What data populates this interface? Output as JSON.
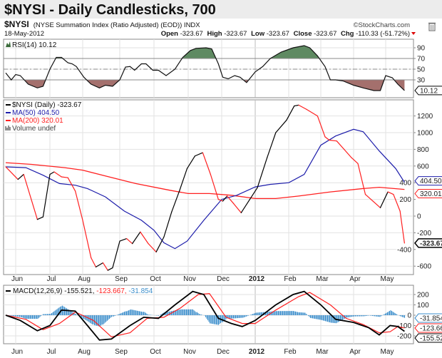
{
  "header": {
    "title": "$NYSI - Daily Candlesticks, 700",
    "symbol": "$NYSI",
    "description": "(NYSE Summation Index (Ratio Adjusted) (EOD)) INDX",
    "watermark": "©StockCharts.com",
    "date": "18-May-2012",
    "open_label": "Open",
    "open": "-323.67",
    "high_label": "High",
    "high": "-323.67",
    "low_label": "Low",
    "low": "-323.67",
    "close_label": "Close",
    "close": "-323.67",
    "chg_label": "Chg",
    "chg": "-110.33 (-51.72%)",
    "chg_direction": "down",
    "trash_icon": "trash-icon"
  },
  "colors": {
    "up": "#000000",
    "down": "#ff2020",
    "ma50": "#1c1caa",
    "ma200": "#ff2020",
    "macd_hist": "#3d8fcc",
    "signal": "#ff2020",
    "rsi_overbought_fill": "#5f8a62",
    "rsi_oversold_fill": "#a4706d"
  },
  "chart_data": [
    {
      "type": "line",
      "panel": "RSI",
      "legend": "RSI(14) 10.12",
      "last_tag": "10.12",
      "ylim": [
        0,
        100
      ],
      "yticks": [
        "90",
        "70",
        "50",
        "30"
      ],
      "reference_lines": [
        70,
        50,
        30
      ],
      "grid": true,
      "series": [
        {
          "name": "RSI(14)",
          "points": [
            [
              "2011-05-23",
              43
            ],
            [
              "2011-05-28",
              30
            ],
            [
              "2011-06-01",
              40
            ],
            [
              "2011-06-05",
              38
            ],
            [
              "2011-06-12",
              22
            ],
            [
              "2011-06-20",
              15
            ],
            [
              "2011-06-25",
              18
            ],
            [
              "2011-07-01",
              50
            ],
            [
              "2011-07-07",
              72
            ],
            [
              "2011-07-12",
              72
            ],
            [
              "2011-07-18",
              62
            ],
            [
              "2011-07-22",
              60
            ],
            [
              "2011-07-26",
              55
            ],
            [
              "2011-08-02",
              35
            ],
            [
              "2011-08-08",
              22
            ],
            [
              "2011-08-15",
              15
            ],
            [
              "2011-08-20",
              20
            ],
            [
              "2011-08-26",
              18
            ],
            [
              "2011-09-01",
              30
            ],
            [
              "2011-09-06",
              54
            ],
            [
              "2011-09-10",
              55
            ],
            [
              "2011-09-14",
              48
            ],
            [
              "2011-09-20",
              60
            ],
            [
              "2011-09-24",
              60
            ],
            [
              "2011-09-30",
              48
            ],
            [
              "2011-10-05",
              48
            ],
            [
              "2011-10-12",
              38
            ],
            [
              "2011-10-20",
              50
            ],
            [
              "2011-10-27",
              72
            ],
            [
              "2011-11-03",
              85
            ],
            [
              "2011-11-08",
              89
            ],
            [
              "2011-11-17",
              90
            ],
            [
              "2011-11-22",
              88
            ],
            [
              "2011-11-28",
              60
            ],
            [
              "2011-12-02",
              35
            ],
            [
              "2011-12-07",
              32
            ],
            [
              "2011-12-13",
              38
            ],
            [
              "2011-12-18",
              35
            ],
            [
              "2011-12-24",
              25
            ],
            [
              "2012-01-01",
              45
            ],
            [
              "2012-01-08",
              55
            ],
            [
              "2012-01-15",
              70
            ],
            [
              "2012-01-25",
              82
            ],
            [
              "2012-02-05",
              90
            ],
            [
              "2012-02-15",
              94
            ],
            [
              "2012-02-20",
              90
            ],
            [
              "2012-02-27",
              75
            ],
            [
              "2012-03-05",
              55
            ],
            [
              "2012-03-10",
              30
            ],
            [
              "2012-03-15",
              30
            ],
            [
              "2012-03-22",
              28
            ],
            [
              "2012-04-01",
              20
            ],
            [
              "2012-04-10",
              15
            ],
            [
              "2012-04-20",
              10
            ],
            [
              "2012-04-26",
              10
            ],
            [
              "2012-05-01",
              38
            ],
            [
              "2012-05-07",
              34
            ],
            [
              "2012-05-12",
              22
            ],
            [
              "2012-05-18",
              10.12
            ]
          ]
        }
      ]
    },
    {
      "type": "line",
      "panel": "price",
      "ylim": [
        -700,
        1400
      ],
      "yticks": [
        "1200",
        "1000",
        "800",
        "600",
        "400",
        "200",
        "0",
        "-200",
        "-400",
        "-600"
      ],
      "xticks": [
        "Jun",
        "Jul",
        "Aug",
        "Sep",
        "Oct",
        "Nov",
        "Dec",
        "2012",
        "Feb",
        "Mar",
        "Apr",
        "May"
      ],
      "grid": true,
      "legend": [
        "$NYSI (Daily) -323.67",
        "MA(50) 404.50",
        "MA(200) 320.01",
        "Volume undef"
      ],
      "series": [
        {
          "name": "$NYSI (Daily)",
          "last_tag": "-323.67",
          "points": [
            [
              "2011-05-23",
              590
            ],
            [
              "2011-06-03",
              440
            ],
            [
              "2011-06-08",
              500
            ],
            [
              "2011-06-20",
              -40
            ],
            [
              "2011-06-25",
              -10
            ],
            [
              "2011-07-01",
              500
            ],
            [
              "2011-07-05",
              530
            ],
            [
              "2011-07-12",
              470
            ],
            [
              "2011-07-18",
              460
            ],
            [
              "2011-07-25",
              300
            ],
            [
              "2011-08-01",
              -50
            ],
            [
              "2011-08-08",
              -500
            ],
            [
              "2011-08-12",
              -610
            ],
            [
              "2011-08-18",
              -560
            ],
            [
              "2011-08-22",
              -650
            ],
            [
              "2011-08-26",
              -620
            ],
            [
              "2011-09-01",
              -300
            ],
            [
              "2011-09-07",
              -270
            ],
            [
              "2011-09-12",
              -330
            ],
            [
              "2011-09-19",
              -190
            ],
            [
              "2011-09-26",
              -330
            ],
            [
              "2011-10-03",
              -430
            ],
            [
              "2011-10-10",
              -250
            ],
            [
              "2011-10-17",
              50
            ],
            [
              "2011-10-24",
              300
            ],
            [
              "2011-10-31",
              570
            ],
            [
              "2011-11-07",
              720
            ],
            [
              "2011-11-14",
              760
            ],
            [
              "2011-11-21",
              500
            ],
            [
              "2011-11-28",
              200
            ],
            [
              "2011-12-02",
              180
            ],
            [
              "2011-12-06",
              240
            ],
            [
              "2011-12-12",
              150
            ],
            [
              "2011-12-19",
              40
            ],
            [
              "2011-12-27",
              200
            ],
            [
              "2012-01-03",
              340
            ],
            [
              "2012-01-12",
              700
            ],
            [
              "2012-01-20",
              1000
            ],
            [
              "2012-01-30",
              1150
            ],
            [
              "2012-02-06",
              1320
            ],
            [
              "2012-02-10",
              1330
            ],
            [
              "2012-02-17",
              1280
            ],
            [
              "2012-02-27",
              1200
            ],
            [
              "2012-03-05",
              950
            ],
            [
              "2012-03-09",
              910
            ],
            [
              "2012-03-16",
              900
            ],
            [
              "2012-03-23",
              800
            ],
            [
              "2012-03-30",
              700
            ],
            [
              "2012-04-05",
              630
            ],
            [
              "2012-04-12",
              260
            ],
            [
              "2012-04-19",
              180
            ],
            [
              "2012-04-26",
              100
            ],
            [
              "2012-05-03",
              290
            ],
            [
              "2012-05-08",
              260
            ],
            [
              "2012-05-14",
              60
            ],
            [
              "2012-05-18",
              -323.67
            ]
          ]
        },
        {
          "name": "MA(50)",
          "last_tag": "404.50",
          "points": [
            [
              "2011-05-23",
              590
            ],
            [
              "2011-06-10",
              580
            ],
            [
              "2011-06-25",
              490
            ],
            [
              "2011-07-10",
              390
            ],
            [
              "2011-07-25",
              370
            ],
            [
              "2011-08-05",
              330
            ],
            [
              "2011-08-20",
              230
            ],
            [
              "2011-09-05",
              60
            ],
            [
              "2011-09-20",
              -50
            ],
            [
              "2011-10-01",
              -170
            ],
            [
              "2011-10-10",
              -320
            ],
            [
              "2011-10-20",
              -390
            ],
            [
              "2011-10-31",
              -300
            ],
            [
              "2011-11-15",
              -50
            ],
            [
              "2011-12-01",
              200
            ],
            [
              "2011-12-15",
              250
            ],
            [
              "2012-01-01",
              350
            ],
            [
              "2012-01-15",
              380
            ],
            [
              "2012-02-01",
              400
            ],
            [
              "2012-02-15",
              500
            ],
            [
              "2012-03-01",
              850
            ],
            [
              "2012-03-15",
              960
            ],
            [
              "2012-04-01",
              1040
            ],
            [
              "2012-04-10",
              1010
            ],
            [
              "2012-04-25",
              780
            ],
            [
              "2012-05-10",
              570
            ],
            [
              "2012-05-18",
              404.5
            ]
          ]
        },
        {
          "name": "MA(200)",
          "last_tag": "320.01",
          "points": [
            [
              "2011-05-23",
              640
            ],
            [
              "2011-06-15",
              620
            ],
            [
              "2011-07-15",
              580
            ],
            [
              "2011-08-01",
              550
            ],
            [
              "2011-08-20",
              480
            ],
            [
              "2011-09-15",
              390
            ],
            [
              "2011-10-15",
              310
            ],
            [
              "2011-11-01",
              270
            ],
            [
              "2011-11-20",
              270
            ],
            [
              "2011-12-10",
              250
            ],
            [
              "2012-01-01",
              210
            ],
            [
              "2012-01-20",
              210
            ],
            [
              "2012-02-10",
              240
            ],
            [
              "2012-03-10",
              290
            ],
            [
              "2012-04-10",
              330
            ],
            [
              "2012-04-25",
              345
            ],
            [
              "2012-05-18",
              320.01
            ]
          ]
        }
      ]
    },
    {
      "type": "line",
      "panel": "MACD",
      "legend_name": "MACD(12,26,9)",
      "legend_macd": "-155.521",
      "legend_signal": "-123.667",
      "legend_hist": "-31.854",
      "ylim": [
        -270,
        270
      ],
      "yticks": [
        "200",
        "100",
        "0",
        "-100",
        "-200"
      ],
      "xticks": [
        "Jun",
        "Jul",
        "Aug",
        "Sep",
        "Oct",
        "Nov",
        "Dec",
        "2012",
        "Feb",
        "Mar",
        "Apr",
        "May"
      ],
      "grid": true,
      "series": [
        {
          "name": "MACD",
          "last_tag": "-155.521",
          "points": [
            [
              "2011-05-23",
              0
            ],
            [
              "2011-06-05",
              -50
            ],
            [
              "2011-06-20",
              -150
            ],
            [
              "2011-07-01",
              -100
            ],
            [
              "2011-07-12",
              50
            ],
            [
              "2011-07-25",
              40
            ],
            [
              "2011-08-05",
              -100
            ],
            [
              "2011-08-15",
              -240
            ],
            [
              "2011-08-25",
              -230
            ],
            [
              "2011-09-10",
              -100
            ],
            [
              "2011-09-22",
              -20
            ],
            [
              "2011-10-05",
              -30
            ],
            [
              "2011-10-20",
              100
            ],
            [
              "2011-11-05",
              230
            ],
            [
              "2011-11-15",
              200
            ],
            [
              "2011-11-28",
              -30
            ],
            [
              "2011-12-10",
              -80
            ],
            [
              "2011-12-20",
              -110
            ],
            [
              "2012-01-01",
              -50
            ],
            [
              "2012-01-20",
              100
            ],
            [
              "2012-02-05",
              200
            ],
            [
              "2012-02-15",
              230
            ],
            [
              "2012-03-01",
              100
            ],
            [
              "2012-03-15",
              -40
            ],
            [
              "2012-04-01",
              -70
            ],
            [
              "2012-04-15",
              -120
            ],
            [
              "2012-04-25",
              -190
            ],
            [
              "2012-05-05",
              -100
            ],
            [
              "2012-05-12",
              -110
            ],
            [
              "2012-05-18",
              -155.521
            ]
          ]
        },
        {
          "name": "Signal",
          "last_tag": "-123.667",
          "points": [
            [
              "2011-05-23",
              0
            ],
            [
              "2011-06-10",
              -40
            ],
            [
              "2011-06-25",
              -140
            ],
            [
              "2011-07-10",
              -80
            ],
            [
              "2011-07-25",
              30
            ],
            [
              "2011-08-10",
              -50
            ],
            [
              "2011-08-25",
              -210
            ],
            [
              "2011-09-10",
              -170
            ],
            [
              "2011-09-25",
              -30
            ],
            [
              "2011-10-10",
              -20
            ],
            [
              "2011-10-25",
              70
            ],
            [
              "2011-11-10",
              200
            ],
            [
              "2011-11-20",
              210
            ],
            [
              "2011-12-05",
              -20
            ],
            [
              "2011-12-20",
              -80
            ],
            [
              "2012-01-01",
              -80
            ],
            [
              "2012-01-20",
              50
            ],
            [
              "2012-02-10",
              180
            ],
            [
              "2012-02-20",
              220
            ],
            [
              "2012-03-10",
              100
            ],
            [
              "2012-03-25",
              -30
            ],
            [
              "2012-04-10",
              -90
            ],
            [
              "2012-04-25",
              -170
            ],
            [
              "2012-05-05",
              -160
            ],
            [
              "2012-05-12",
              -110
            ],
            [
              "2012-05-18",
              -123.667
            ]
          ]
        },
        {
          "name": "Histogram",
          "last_tag": "-31.854"
        }
      ]
    }
  ]
}
